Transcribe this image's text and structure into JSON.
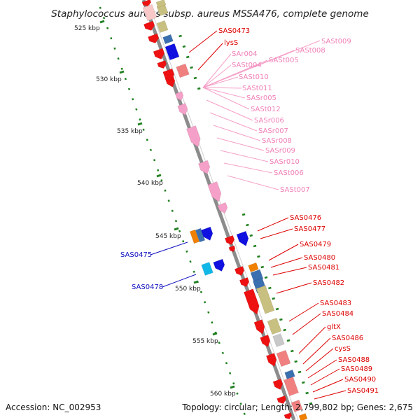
{
  "title": "Staphylococcus aureus subsp. aureus MSSA476, complete genome",
  "footer": {
    "accession": "Accession: NC_002953",
    "topology": "Topology: circular; Length: 2,799,802 bp; Genes: 2,675"
  },
  "scale_labels": [
    "525 kbp",
    "530 kbp",
    "535 kbp",
    "540 kbp",
    "545 kbp",
    "550 kbp",
    "555 kbp",
    "560 kbp"
  ],
  "colors": {
    "backbone": "#8c8c8c",
    "cds_red": "#ee1111",
    "rna_pink": "#f5a0c8",
    "blue_dark": "#1010e0",
    "blue_mid": "#3a6fb0",
    "orange": "#f08000",
    "khaki": "#c8c080",
    "salmon": "#f08080",
    "cyan": "#10b8e8",
    "gray": "#c8c8c8",
    "tick_green": "#208020"
  },
  "gene_labels": {
    "right_red": [
      "SAS0473",
      "lysS"
    ],
    "right_pink": [
      "SAr004",
      "SASt004",
      "SASt005",
      "SASt006",
      "SASt007",
      "SASt008",
      "SASt009",
      "SASt010",
      "SASt011",
      "SASr005",
      "SASt012",
      "SASr006",
      "SASr007",
      "SASr008",
      "SASr009",
      "SASr010"
    ],
    "right_red_lower": [
      "SAS0476",
      "SAS0477",
      "SAS0479",
      "SAS0480",
      "SAS0481",
      "SAS0482",
      "SAS0483",
      "SAS0484",
      "gltX",
      "SAS0486",
      "cysS",
      "SAS0488",
      "SAS0489",
      "SAS0490",
      "SAS0491"
    ],
    "left_blue": [
      "SAS0475",
      "SAS0478"
    ]
  }
}
